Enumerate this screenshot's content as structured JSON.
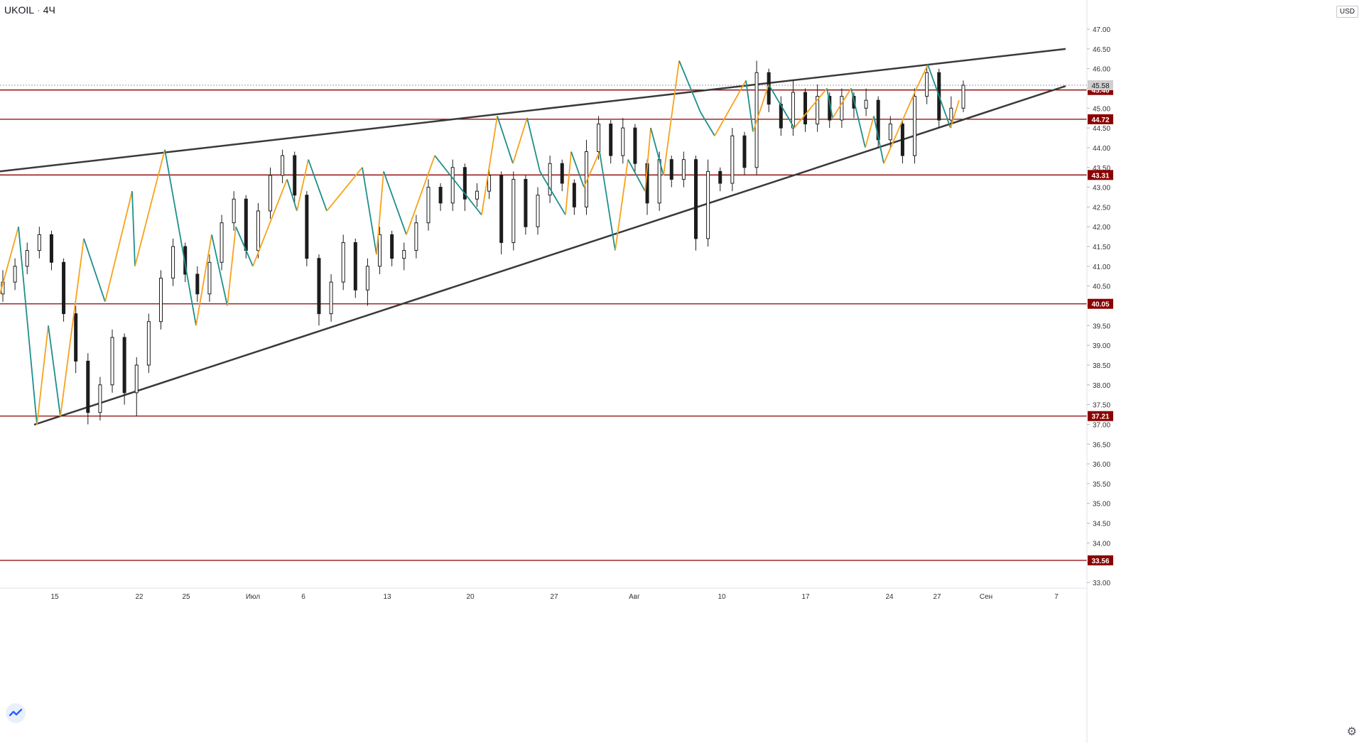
{
  "header": {
    "symbol": "UKOIL",
    "separator": "·",
    "interval": "4Ч"
  },
  "axis": {
    "currency": "USD"
  },
  "colors": {
    "candle": "#1c1c1c",
    "zigzag_up": "#f7a21b",
    "zigzag_down": "#1e8f8a",
    "trend": "#3a3a3a",
    "level": "#8b0000",
    "level_label_bg": "#8b0000",
    "last_price_bg": "#cfcfcf",
    "grid_text": "#333333"
  },
  "icons": {
    "logo": "tradingview-logo-icon",
    "settings": "gear-icon"
  },
  "chart_data": {
    "type": "candlestick",
    "title": "UKOIL · 4Ч",
    "ylim": [
      32.8,
      47.6
    ],
    "y_ticks": [
      47.0,
      46.5,
      46.0,
      45.5,
      45.0,
      44.5,
      44.0,
      43.5,
      43.0,
      42.5,
      42.0,
      41.5,
      41.0,
      40.5,
      40.0,
      39.5,
      39.0,
      38.5,
      38.0,
      37.5,
      37.0,
      36.5,
      36.0,
      35.5,
      35.0,
      34.5,
      34.0,
      33.5,
      33.0
    ],
    "x_labels": [
      "15",
      "22",
      "25",
      "Июл",
      "6",
      "13",
      "20",
      "27",
      "Авг",
      "10",
      "17",
      "24",
      "27",
      "Сен",
      "7"
    ],
    "horizontal_levels": [
      45.46,
      44.72,
      43.31,
      40.05,
      37.21,
      33.56
    ],
    "last_price": 45.58,
    "trend_lines": [
      {
        "name": "upper",
        "points": [
          [
            0,
            43.4
          ],
          [
            1500,
            46.5
          ]
        ]
      },
      {
        "name": "lower",
        "points": [
          [
            48,
            36.99
          ],
          [
            1500,
            45.56
          ]
        ]
      }
    ],
    "zigzag_points": [
      [
        0,
        40.3
      ],
      [
        26,
        42.0
      ],
      [
        52,
        36.99
      ],
      [
        68,
        39.5
      ],
      [
        85,
        37.2
      ],
      [
        118,
        41.7
      ],
      [
        148,
        40.1
      ],
      [
        186,
        42.9
      ],
      [
        190,
        41.0
      ],
      [
        232,
        43.95
      ],
      [
        276,
        39.5
      ],
      [
        298,
        41.8
      ],
      [
        320,
        40.0
      ],
      [
        332,
        42.0
      ],
      [
        356,
        41.0
      ],
      [
        404,
        43.2
      ],
      [
        418,
        42.4
      ],
      [
        434,
        43.7
      ],
      [
        460,
        42.4
      ],
      [
        510,
        43.5
      ],
      [
        530,
        41.3
      ],
      [
        540,
        43.4
      ],
      [
        572,
        41.8
      ],
      [
        612,
        43.8
      ],
      [
        678,
        42.3
      ],
      [
        700,
        44.8
      ],
      [
        722,
        43.6
      ],
      [
        742,
        44.75
      ],
      [
        760,
        43.4
      ],
      [
        796,
        42.3
      ],
      [
        804,
        43.9
      ],
      [
        822,
        43.0
      ],
      [
        844,
        43.9
      ],
      [
        866,
        41.4
      ],
      [
        884,
        43.7
      ],
      [
        908,
        42.9
      ],
      [
        916,
        44.5
      ],
      [
        934,
        43.3
      ],
      [
        956,
        46.2
      ],
      [
        986,
        44.9
      ],
      [
        1006,
        44.3
      ],
      [
        1050,
        45.7
      ],
      [
        1060,
        44.4
      ],
      [
        1082,
        45.6
      ],
      [
        1118,
        44.5
      ],
      [
        1164,
        45.5
      ],
      [
        1172,
        44.75
      ],
      [
        1198,
        45.5
      ],
      [
        1218,
        44.0
      ],
      [
        1230,
        44.8
      ],
      [
        1244,
        43.6
      ],
      [
        1290,
        45.5
      ],
      [
        1306,
        46.1
      ],
      [
        1338,
        44.5
      ],
      [
        1350,
        45.2
      ]
    ],
    "candles_ohlc": [
      [
        40.3,
        40.9,
        40.1,
        40.6
      ],
      [
        40.6,
        41.2,
        40.4,
        41.0
      ],
      [
        41.0,
        41.6,
        40.8,
        41.4
      ],
      [
        41.4,
        42.0,
        41.2,
        41.8
      ],
      [
        41.8,
        41.9,
        40.9,
        41.1
      ],
      [
        41.1,
        41.2,
        39.6,
        39.8
      ],
      [
        39.8,
        40.0,
        38.3,
        38.6
      ],
      [
        38.6,
        38.8,
        37.0,
        37.3
      ],
      [
        37.3,
        38.2,
        37.1,
        38.0
      ],
      [
        38.0,
        39.4,
        37.8,
        39.2
      ],
      [
        39.2,
        39.3,
        37.5,
        37.8
      ],
      [
        37.8,
        38.7,
        37.2,
        38.5
      ],
      [
        38.5,
        39.8,
        38.3,
        39.6
      ],
      [
        39.6,
        40.9,
        39.4,
        40.7
      ],
      [
        40.7,
        41.7,
        40.5,
        41.5
      ],
      [
        41.5,
        41.6,
        40.6,
        40.8
      ],
      [
        40.8,
        41.0,
        40.1,
        40.3
      ],
      [
        40.3,
        41.3,
        40.1,
        41.1
      ],
      [
        41.1,
        42.3,
        40.9,
        42.1
      ],
      [
        42.1,
        42.9,
        41.9,
        42.7
      ],
      [
        42.7,
        42.8,
        41.2,
        41.4
      ],
      [
        41.4,
        42.6,
        41.2,
        42.4
      ],
      [
        42.4,
        43.5,
        42.2,
        43.3
      ],
      [
        43.3,
        43.95,
        43.1,
        43.8
      ],
      [
        43.8,
        43.9,
        42.6,
        42.8
      ],
      [
        42.8,
        42.9,
        41.0,
        41.2
      ],
      [
        41.2,
        41.3,
        39.5,
        39.8
      ],
      [
        39.8,
        40.8,
        39.6,
        40.6
      ],
      [
        40.6,
        41.8,
        40.4,
        41.6
      ],
      [
        41.6,
        41.7,
        40.2,
        40.4
      ],
      [
        40.4,
        41.2,
        40.0,
        41.0
      ],
      [
        41.0,
        42.0,
        40.8,
        41.8
      ],
      [
        41.8,
        41.9,
        41.0,
        41.2
      ],
      [
        41.2,
        41.6,
        40.9,
        41.4
      ],
      [
        41.4,
        42.3,
        41.2,
        42.1
      ],
      [
        42.1,
        43.2,
        41.9,
        43.0
      ],
      [
        43.0,
        43.1,
        42.4,
        42.6
      ],
      [
        42.6,
        43.7,
        42.4,
        43.5
      ],
      [
        43.5,
        43.6,
        42.4,
        42.7
      ],
      [
        42.7,
        43.1,
        42.5,
        42.9
      ],
      [
        42.9,
        43.5,
        42.7,
        43.3
      ],
      [
        43.3,
        43.4,
        41.3,
        41.6
      ],
      [
        41.6,
        43.4,
        41.4,
        43.2
      ],
      [
        43.2,
        43.3,
        41.8,
        42.0
      ],
      [
        42.0,
        43.0,
        41.8,
        42.8
      ],
      [
        42.8,
        43.8,
        42.6,
        43.6
      ],
      [
        43.6,
        43.7,
        42.9,
        43.1
      ],
      [
        43.1,
        43.2,
        42.3,
        42.5
      ],
      [
        42.5,
        44.2,
        42.3,
        43.9
      ],
      [
        43.9,
        44.8,
        43.7,
        44.6
      ],
      [
        44.6,
        44.7,
        43.6,
        43.8
      ],
      [
        43.8,
        44.75,
        43.6,
        44.5
      ],
      [
        44.5,
        44.6,
        43.4,
        43.6
      ],
      [
        43.6,
        43.7,
        42.3,
        42.6
      ],
      [
        42.6,
        43.9,
        42.4,
        43.7
      ],
      [
        43.7,
        43.8,
        43.0,
        43.2
      ],
      [
        43.2,
        43.9,
        43.0,
        43.7
      ],
      [
        43.7,
        43.8,
        41.4,
        41.7
      ],
      [
        41.7,
        43.7,
        41.5,
        43.4
      ],
      [
        43.4,
        43.5,
        42.9,
        43.1
      ],
      [
        43.1,
        44.5,
        42.9,
        44.3
      ],
      [
        44.3,
        44.4,
        43.3,
        43.5
      ],
      [
        43.5,
        46.2,
        43.3,
        45.9
      ],
      [
        45.9,
        46.0,
        44.9,
        45.1
      ],
      [
        45.1,
        45.3,
        44.3,
        44.5
      ],
      [
        44.5,
        45.7,
        44.3,
        45.4
      ],
      [
        45.4,
        45.5,
        44.4,
        44.6
      ],
      [
        44.6,
        45.6,
        44.4,
        45.3
      ],
      [
        45.3,
        45.4,
        44.5,
        44.7
      ],
      [
        44.7,
        45.5,
        44.5,
        45.3
      ],
      [
        45.3,
        45.4,
        44.75,
        45.0
      ],
      [
        45.0,
        45.5,
        44.8,
        45.2
      ],
      [
        45.2,
        45.3,
        44.0,
        44.2
      ],
      [
        44.2,
        44.8,
        44.0,
        44.6
      ],
      [
        44.6,
        44.7,
        43.6,
        43.8
      ],
      [
        43.8,
        45.5,
        43.6,
        45.3
      ],
      [
        45.3,
        46.1,
        45.1,
        45.9
      ],
      [
        45.9,
        46.0,
        44.5,
        44.7
      ],
      [
        44.7,
        45.3,
        44.5,
        45.0
      ],
      [
        45.0,
        45.7,
        44.9,
        45.58
      ]
    ]
  }
}
